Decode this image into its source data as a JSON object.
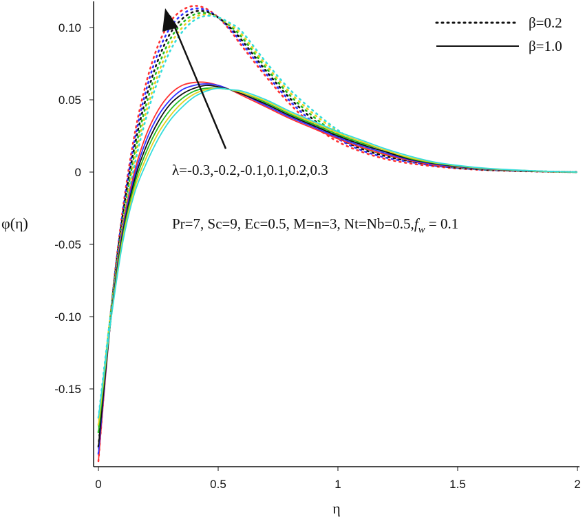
{
  "chart_data": {
    "type": "line",
    "xlabel": "η",
    "ylabel": "φ(η)",
    "xlim": [
      0,
      2
    ],
    "ylim": [
      -0.2,
      0.12
    ],
    "x_ticks": [
      {
        "v": 0,
        "label": "0"
      },
      {
        "v": 0.5,
        "label": "0.5"
      },
      {
        "v": 1,
        "label": "1"
      },
      {
        "v": 1.5,
        "label": "1.5"
      },
      {
        "v": 2,
        "label": "2"
      }
    ],
    "y_ticks": [
      {
        "v": 0.1,
        "label": "0.10"
      },
      {
        "v": 0.05,
        "label": "0.05"
      },
      {
        "v": 0,
        "label": "0"
      },
      {
        "v": -0.05,
        "label": "-0.05"
      },
      {
        "v": -0.1,
        "label": "-0.10"
      },
      {
        "v": -0.15,
        "label": "-0.15"
      }
    ],
    "grid": false,
    "legend_position": "top-right",
    "legend": [
      {
        "label": "β=0.2",
        "style": "dotted"
      },
      {
        "label": "β=1.0",
        "style": "solid"
      }
    ],
    "annotations": {
      "lambda_label": "λ=-0.3,-0.2,-0.1,0.1,0.2,0.3",
      "params_prefix": "Pr=7, Sc=9, Ec=0.5, M=n=3, Nt=Nb=0.5,",
      "params_f": "f",
      "params_w": "w",
      "params_suffix": " = 0.1"
    },
    "colors": [
      "#ff3030",
      "#3030ff",
      "#111111",
      "#22bb22",
      "#e6d020",
      "#33dddd"
    ],
    "lambda_values": [
      -0.3,
      -0.2,
      -0.1,
      0.1,
      0.2,
      0.3
    ],
    "series": [
      {
        "group": "β=0.2",
        "lambda": -0.3,
        "x": [
          0,
          0.05,
          0.1,
          0.15,
          0.2,
          0.25,
          0.3,
          0.35,
          0.4,
          0.45,
          0.5,
          0.55,
          0.6,
          0.7,
          0.8,
          0.9,
          1.0,
          1.1,
          1.2,
          1.3,
          1.4,
          1.5,
          1.6,
          1.7,
          1.8,
          1.9,
          2.0
        ],
        "y": [
          -0.2,
          -0.1,
          -0.028,
          0.025,
          0.062,
          0.088,
          0.104,
          0.112,
          0.115,
          0.113,
          0.107,
          0.098,
          0.087,
          0.066,
          0.047,
          0.032,
          0.021,
          0.014,
          0.009,
          0.006,
          0.004,
          0.0025,
          0.0015,
          0.0009,
          0.0005,
          0.0002,
          0.0
        ]
      },
      {
        "group": "β=0.2",
        "lambda": -0.2,
        "x": [
          0,
          0.05,
          0.1,
          0.15,
          0.2,
          0.25,
          0.3,
          0.35,
          0.4,
          0.45,
          0.5,
          0.55,
          0.6,
          0.7,
          0.8,
          0.9,
          1.0,
          1.1,
          1.2,
          1.3,
          1.4,
          1.5,
          1.6,
          1.7,
          1.8,
          1.9,
          2.0
        ],
        "y": [
          -0.195,
          -0.1,
          -0.03,
          0.021,
          0.057,
          0.083,
          0.1,
          0.109,
          0.113,
          0.112,
          0.107,
          0.099,
          0.089,
          0.068,
          0.049,
          0.034,
          0.023,
          0.015,
          0.01,
          0.007,
          0.0045,
          0.0028,
          0.0017,
          0.001,
          0.0006,
          0.0002,
          0.0
        ]
      },
      {
        "group": "β=0.2",
        "lambda": -0.1,
        "x": [
          0,
          0.05,
          0.1,
          0.15,
          0.2,
          0.25,
          0.3,
          0.35,
          0.4,
          0.45,
          0.5,
          0.55,
          0.6,
          0.7,
          0.8,
          0.9,
          1.0,
          1.1,
          1.2,
          1.3,
          1.4,
          1.5,
          1.6,
          1.7,
          1.8,
          1.9,
          2.0
        ],
        "y": [
          -0.19,
          -0.1,
          -0.032,
          0.017,
          0.052,
          0.078,
          0.096,
          0.106,
          0.111,
          0.111,
          0.107,
          0.1,
          0.091,
          0.07,
          0.051,
          0.036,
          0.024,
          0.016,
          0.011,
          0.0075,
          0.005,
          0.003,
          0.0018,
          0.0011,
          0.0006,
          0.0003,
          0.0
        ]
      },
      {
        "group": "β=0.2",
        "lambda": 0.1,
        "x": [
          0,
          0.05,
          0.1,
          0.15,
          0.2,
          0.25,
          0.3,
          0.35,
          0.4,
          0.45,
          0.5,
          0.55,
          0.6,
          0.7,
          0.8,
          0.9,
          1.0,
          1.1,
          1.2,
          1.3,
          1.4,
          1.5,
          1.6,
          1.7,
          1.8,
          1.9,
          2.0
        ],
        "y": [
          -0.18,
          -0.1,
          -0.036,
          0.012,
          0.047,
          0.073,
          0.092,
          0.103,
          0.109,
          0.11,
          0.107,
          0.101,
          0.093,
          0.072,
          0.053,
          0.038,
          0.026,
          0.017,
          0.012,
          0.008,
          0.0053,
          0.0033,
          0.002,
          0.0012,
          0.0007,
          0.0003,
          0.0
        ]
      },
      {
        "group": "β=0.2",
        "lambda": 0.2,
        "x": [
          0,
          0.05,
          0.1,
          0.15,
          0.2,
          0.25,
          0.3,
          0.35,
          0.4,
          0.45,
          0.5,
          0.55,
          0.6,
          0.7,
          0.8,
          0.9,
          1.0,
          1.1,
          1.2,
          1.3,
          1.4,
          1.5,
          1.6,
          1.7,
          1.8,
          1.9,
          2.0
        ],
        "y": [
          -0.175,
          -0.1,
          -0.038,
          0.008,
          0.042,
          0.068,
          0.088,
          0.1,
          0.107,
          0.109,
          0.107,
          0.102,
          0.095,
          0.074,
          0.055,
          0.04,
          0.028,
          0.018,
          0.013,
          0.0085,
          0.0056,
          0.0035,
          0.0022,
          0.0013,
          0.0008,
          0.0003,
          0.0
        ]
      },
      {
        "group": "β=0.2",
        "lambda": 0.3,
        "x": [
          0,
          0.05,
          0.1,
          0.15,
          0.2,
          0.25,
          0.3,
          0.35,
          0.4,
          0.45,
          0.5,
          0.55,
          0.6,
          0.7,
          0.8,
          0.9,
          1.0,
          1.1,
          1.2,
          1.3,
          1.4,
          1.5,
          1.6,
          1.7,
          1.8,
          1.9,
          2.0
        ],
        "y": [
          -0.17,
          -0.1,
          -0.04,
          0.004,
          0.038,
          0.064,
          0.084,
          0.097,
          0.105,
          0.108,
          0.107,
          0.103,
          0.097,
          0.076,
          0.057,
          0.042,
          0.029,
          0.019,
          0.014,
          0.009,
          0.006,
          0.0037,
          0.0023,
          0.0014,
          0.0008,
          0.0003,
          0.0
        ]
      },
      {
        "group": "β=1.0",
        "lambda": -0.3,
        "x": [
          0,
          0.05,
          0.1,
          0.15,
          0.2,
          0.25,
          0.3,
          0.35,
          0.4,
          0.45,
          0.5,
          0.55,
          0.6,
          0.7,
          0.8,
          0.9,
          1.0,
          1.1,
          1.2,
          1.3,
          1.4,
          1.5,
          1.6,
          1.7,
          1.8,
          1.9,
          2.0
        ],
        "y": [
          -0.2,
          -0.105,
          -0.04,
          0.0,
          0.026,
          0.043,
          0.054,
          0.06,
          0.062,
          0.062,
          0.06,
          0.057,
          0.053,
          0.045,
          0.037,
          0.03,
          0.023,
          0.017,
          0.012,
          0.008,
          0.005,
          0.0035,
          0.0022,
          0.0013,
          0.0007,
          0.0003,
          0.0
        ]
      },
      {
        "group": "β=1.0",
        "lambda": -0.2,
        "x": [
          0,
          0.05,
          0.1,
          0.15,
          0.2,
          0.25,
          0.3,
          0.35,
          0.4,
          0.45,
          0.5,
          0.55,
          0.6,
          0.7,
          0.8,
          0.9,
          1.0,
          1.1,
          1.2,
          1.3,
          1.4,
          1.5,
          1.6,
          1.7,
          1.8,
          1.9,
          2.0
        ],
        "y": [
          -0.195,
          -0.105,
          -0.042,
          -0.003,
          0.022,
          0.039,
          0.05,
          0.057,
          0.06,
          0.061,
          0.06,
          0.057,
          0.054,
          0.046,
          0.038,
          0.031,
          0.024,
          0.018,
          0.013,
          0.0085,
          0.0055,
          0.0037,
          0.0023,
          0.0014,
          0.0008,
          0.0003,
          0.0
        ]
      },
      {
        "group": "β=1.0",
        "lambda": -0.1,
        "x": [
          0,
          0.05,
          0.1,
          0.15,
          0.2,
          0.25,
          0.3,
          0.35,
          0.4,
          0.45,
          0.5,
          0.55,
          0.6,
          0.7,
          0.8,
          0.9,
          1.0,
          1.1,
          1.2,
          1.3,
          1.4,
          1.5,
          1.6,
          1.7,
          1.8,
          1.9,
          2.0
        ],
        "y": [
          -0.19,
          -0.105,
          -0.044,
          -0.006,
          0.018,
          0.035,
          0.047,
          0.054,
          0.058,
          0.06,
          0.059,
          0.057,
          0.054,
          0.047,
          0.039,
          0.032,
          0.025,
          0.019,
          0.014,
          0.009,
          0.006,
          0.004,
          0.0025,
          0.0015,
          0.0008,
          0.0003,
          0.0
        ]
      },
      {
        "group": "β=1.0",
        "lambda": 0.1,
        "x": [
          0,
          0.05,
          0.1,
          0.15,
          0.2,
          0.25,
          0.3,
          0.35,
          0.4,
          0.45,
          0.5,
          0.55,
          0.6,
          0.7,
          0.8,
          0.9,
          1.0,
          1.1,
          1.2,
          1.3,
          1.4,
          1.5,
          1.6,
          1.7,
          1.8,
          1.9,
          2.0
        ],
        "y": [
          -0.18,
          -0.105,
          -0.046,
          -0.009,
          0.014,
          0.031,
          0.043,
          0.051,
          0.056,
          0.058,
          0.058,
          0.057,
          0.055,
          0.048,
          0.04,
          0.033,
          0.026,
          0.02,
          0.015,
          0.0095,
          0.0063,
          0.0042,
          0.0026,
          0.0016,
          0.0009,
          0.0003,
          0.0
        ]
      },
      {
        "group": "β=1.0",
        "lambda": 0.2,
        "x": [
          0,
          0.05,
          0.1,
          0.15,
          0.2,
          0.25,
          0.3,
          0.35,
          0.4,
          0.45,
          0.5,
          0.55,
          0.6,
          0.7,
          0.8,
          0.9,
          1.0,
          1.1,
          1.2,
          1.3,
          1.4,
          1.5,
          1.6,
          1.7,
          1.8,
          1.9,
          2.0
        ],
        "y": [
          -0.175,
          -0.105,
          -0.048,
          -0.012,
          0.01,
          0.027,
          0.039,
          0.048,
          0.054,
          0.057,
          0.058,
          0.057,
          0.055,
          0.049,
          0.041,
          0.034,
          0.027,
          0.021,
          0.015,
          0.01,
          0.0066,
          0.0044,
          0.0027,
          0.0017,
          0.0009,
          0.0003,
          0.0
        ]
      },
      {
        "group": "β=1.0",
        "lambda": 0.3,
        "x": [
          0,
          0.05,
          0.1,
          0.15,
          0.2,
          0.25,
          0.3,
          0.35,
          0.4,
          0.45,
          0.5,
          0.55,
          0.6,
          0.7,
          0.8,
          0.9,
          1.0,
          1.1,
          1.2,
          1.3,
          1.4,
          1.5,
          1.6,
          1.7,
          1.8,
          1.9,
          2.0
        ],
        "y": [
          -0.17,
          -0.105,
          -0.05,
          -0.015,
          0.006,
          0.023,
          0.036,
          0.045,
          0.052,
          0.056,
          0.058,
          0.057,
          0.056,
          0.05,
          0.042,
          0.035,
          0.028,
          0.022,
          0.016,
          0.011,
          0.007,
          0.0046,
          0.0029,
          0.0018,
          0.001,
          0.0004,
          0.0
        ]
      }
    ]
  }
}
